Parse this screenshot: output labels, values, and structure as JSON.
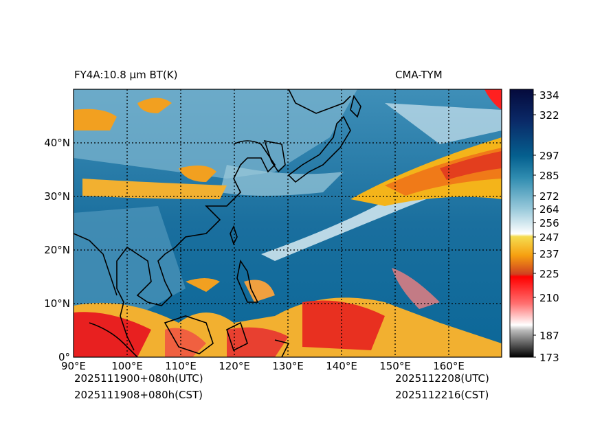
{
  "header": {
    "title": "FY4A:10.8 µm BT(K)",
    "source": "CMA-TYM"
  },
  "footer": {
    "init_utc": "2025111900+080h(UTC)",
    "init_cst": "2025111908+080h(CST)",
    "valid_utc": "2025112208(UTC)",
    "valid_cst": "2025112216(CST)"
  },
  "map": {
    "lon_range": [
      90,
      168
    ],
    "lat_range": [
      0,
      50
    ],
    "lon_ticks": [
      "90°E",
      "100°E",
      "110°E",
      "120°E",
      "130°E",
      "140°E",
      "150°E",
      "160°E"
    ],
    "lat_ticks": [
      "0°",
      "10°N",
      "20°N",
      "30°N",
      "40°N"
    ],
    "gridlines": "dotted"
  },
  "colorbar": {
    "label_unit": "K",
    "ticks": [
      "334",
      "322",
      "297",
      "285",
      "272",
      "264",
      "256",
      "247",
      "237",
      "225",
      "210",
      "187",
      "173"
    ],
    "colors": {
      "warm_top": "#0a1650",
      "ocean": "#0e6d9c",
      "light": "#9cc9dc",
      "white": "#ffffff",
      "yellow": "#f2e050",
      "orange": "#f29a10",
      "red": "#ff0000",
      "gray": "#888888",
      "black": "#000000"
    }
  }
}
